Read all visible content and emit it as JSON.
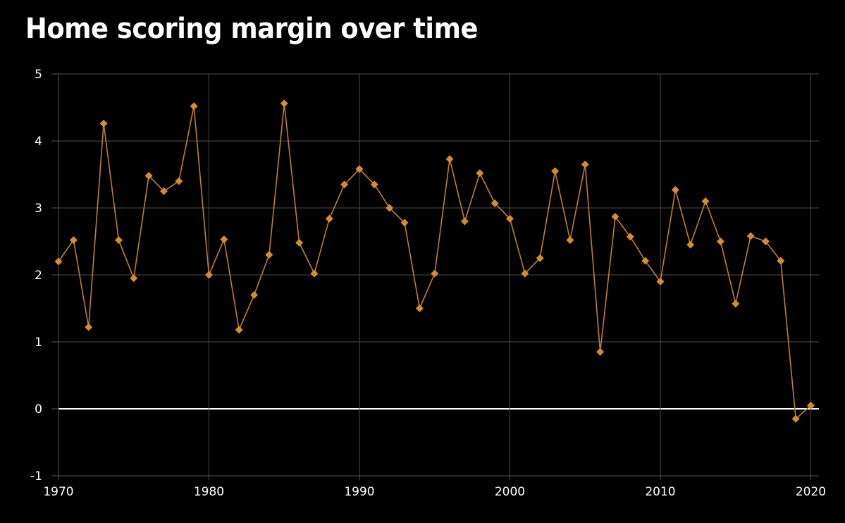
{
  "title": "Home scoring margin over time",
  "colors": {
    "background": "#000000",
    "title_text": "#ffffff",
    "grid_line": "#4b4b4b",
    "axis_line": "#565656",
    "zero_line": "#ffffff",
    "tick_label": "#ffffff",
    "series_line": "#bd812c",
    "marker_fill": "#d18e2f"
  },
  "chart_data": {
    "type": "line",
    "title": "Home scoring margin over time",
    "xlabel": "",
    "ylabel": "",
    "legend": "none",
    "grid": true,
    "marker": "diamond",
    "xlim": [
      1970,
      2020
    ],
    "ylim": [
      -1,
      5
    ],
    "x_ticks": [
      1970,
      1980,
      1990,
      2000,
      2010,
      2020
    ],
    "y_ticks": [
      -1,
      0,
      1,
      2,
      3,
      4,
      5
    ],
    "series": [
      {
        "name": "Home scoring margin",
        "x": [
          1970,
          1971,
          1972,
          1973,
          1974,
          1975,
          1976,
          1977,
          1978,
          1979,
          1980,
          1981,
          1982,
          1983,
          1984,
          1985,
          1986,
          1987,
          1988,
          1989,
          1990,
          1991,
          1992,
          1993,
          1994,
          1995,
          1996,
          1997,
          1998,
          1999,
          2000,
          2001,
          2002,
          2003,
          2004,
          2005,
          2006,
          2007,
          2008,
          2009,
          2010,
          2011,
          2012,
          2013,
          2014,
          2015,
          2016,
          2017,
          2018,
          2019,
          2020
        ],
        "y": [
          2.2,
          2.52,
          1.22,
          4.26,
          2.52,
          1.95,
          3.48,
          3.25,
          3.4,
          4.52,
          2.0,
          2.53,
          1.18,
          1.7,
          2.3,
          4.56,
          2.48,
          2.02,
          2.84,
          3.35,
          3.58,
          3.35,
          3.0,
          2.78,
          1.5,
          2.02,
          3.73,
          2.8,
          3.52,
          3.07,
          2.84,
          2.02,
          2.25,
          3.55,
          2.52,
          3.65,
          0.85,
          2.87,
          2.57,
          2.21,
          1.9,
          3.27,
          2.45,
          3.1,
          2.5,
          1.57,
          2.58,
          2.5,
          2.21,
          -0.15,
          0.05
        ]
      }
    ]
  }
}
